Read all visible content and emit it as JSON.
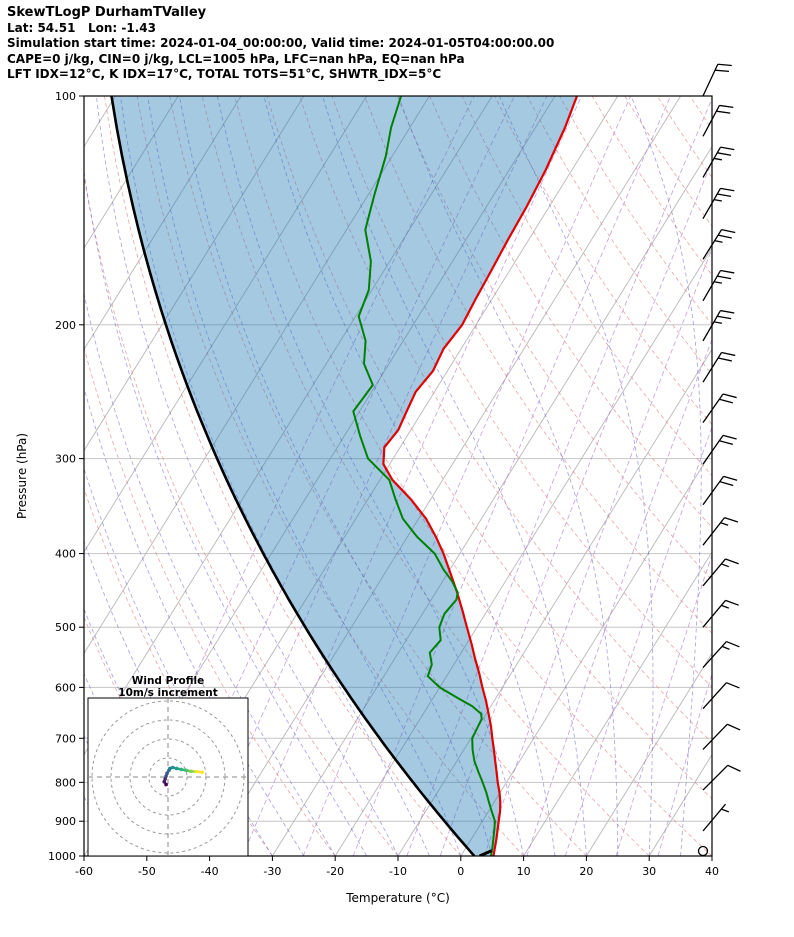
{
  "header": {
    "title": "SkewTLogP DurhamTValley",
    "location": "Lat: 54.51   Lon: -1.43",
    "times": "Simulation start time: 2024-01-04_00:00:00, Valid time: 2024-01-05T04:00:00.00",
    "indices1": "CAPE=0 j/kg, CIN=0 j/kg, LCL=1005 hPa, LFC=nan hPa, EQ=nan hPa",
    "indices2": "LFT IDX=12°C, K IDX=17°C, TOTAL TOTS=51°C, SHWTR_IDX=5°C"
  },
  "chart_data": {
    "type": "line",
    "subtype": "skew-t-log-p",
    "xlabel": "Temperature (°C)",
    "ylabel": "Pressure (hPa)",
    "x_ticks": [
      -60,
      -50,
      -40,
      -30,
      -20,
      -10,
      0,
      10,
      20,
      30,
      40
    ],
    "y_ticks": [
      100,
      200,
      300,
      400,
      500,
      600,
      700,
      800,
      900,
      1000
    ],
    "x_range": [
      -60,
      40
    ],
    "p_range": [
      100,
      1000
    ],
    "skew_c_per_decade": 75,
    "isotherms": {
      "start": -160,
      "end": 40,
      "step": 10
    },
    "dry_adiabats": {
      "start": -40,
      "end": 200,
      "step": 10
    },
    "moist_adiabats": {
      "start": -60,
      "end": 40,
      "step": 5
    },
    "mixing_ratios_g_kg": [
      0.02,
      0.05,
      0.1,
      0.2,
      0.5,
      1,
      2,
      3,
      5,
      8,
      12,
      20,
      30
    ],
    "series": {
      "temperature": {
        "pressure": [
          1000,
          975,
          950,
          925,
          900,
          875,
          850,
          825,
          800,
          775,
          750,
          725,
          700,
          675,
          650,
          625,
          600,
          575,
          550,
          525,
          500,
          475,
          450,
          425,
          400,
          380,
          360,
          340,
          320,
          305,
          290,
          275,
          260,
          245,
          230,
          215,
          200,
          185,
          170,
          155,
          140,
          125,
          110,
          100
        ],
        "temp_c": [
          5.2,
          4.6,
          4.0,
          3.3,
          2.6,
          1.9,
          1.0,
          -0.1,
          -1.4,
          -2.6,
          -3.9,
          -5.2,
          -6.6,
          -8.0,
          -9.6,
          -11.3,
          -13.2,
          -15.1,
          -17.2,
          -19.3,
          -21.6,
          -24.0,
          -26.6,
          -29.5,
          -32.6,
          -35.5,
          -38.8,
          -43.0,
          -48.0,
          -51.0,
          -52.5,
          -52.0,
          -52.5,
          -53.0,
          -52.3,
          -52.8,
          -52.2,
          -52.6,
          -52.9,
          -53.3,
          -53.6,
          -54.2,
          -55.3,
          -56.5
        ]
      },
      "dewpoint": {
        "pressure": [
          1000,
          975,
          950,
          925,
          900,
          875,
          850,
          825,
          800,
          775,
          750,
          725,
          700,
          680,
          660,
          650,
          635,
          620,
          600,
          580,
          560,
          540,
          520,
          500,
          480,
          460,
          450,
          435,
          420,
          400,
          380,
          360,
          340,
          320,
          300,
          280,
          260,
          240,
          225,
          210,
          195,
          180,
          165,
          150,
          135,
          120,
          110,
          100
        ],
        "temp_c": [
          4.8,
          4.2,
          3.5,
          2.8,
          2.0,
          0.6,
          -0.8,
          -2.2,
          -3.8,
          -5.5,
          -7.2,
          -8.6,
          -9.8,
          -10.0,
          -10.2,
          -10.8,
          -13.0,
          -16.0,
          -20.0,
          -23.0,
          -23.5,
          -25.0,
          -24.5,
          -26.0,
          -26.5,
          -26.0,
          -26.5,
          -28.5,
          -31.0,
          -34.0,
          -38.5,
          -42.5,
          -45.5,
          -48.5,
          -54.0,
          -57.5,
          -61.0,
          -60.5,
          -64.0,
          -66.0,
          -69.5,
          -70.5,
          -73.0,
          -77.0,
          -79.0,
          -81.0,
          -83.0,
          -84.5
        ]
      },
      "parcel": {
        "type": "dry-adiabat",
        "theta_k": 275.3
      }
    },
    "surface_marker": {
      "pressure": [
        1000,
        984
      ],
      "temp_c": [
        3.0,
        4.4
      ]
    },
    "wind_barbs": {
      "full_barb_ms": 10,
      "levels": [
        {
          "p": 100,
          "spd": 20,
          "dir": 25
        },
        {
          "p": 113,
          "spd": 20,
          "dir": 28
        },
        {
          "p": 128,
          "spd": 25,
          "dir": 30
        },
        {
          "p": 145,
          "spd": 25,
          "dir": 30
        },
        {
          "p": 164,
          "spd": 25,
          "dir": 32
        },
        {
          "p": 186,
          "spd": 25,
          "dir": 30
        },
        {
          "p": 210,
          "spd": 25,
          "dir": 30
        },
        {
          "p": 238,
          "spd": 20,
          "dir": 32
        },
        {
          "p": 269,
          "spd": 20,
          "dir": 35
        },
        {
          "p": 305,
          "spd": 20,
          "dir": 35
        },
        {
          "p": 345,
          "spd": 20,
          "dir": 36
        },
        {
          "p": 390,
          "spd": 15,
          "dir": 38
        },
        {
          "p": 441,
          "spd": 15,
          "dir": 40
        },
        {
          "p": 500,
          "spd": 15,
          "dir": 40
        },
        {
          "p": 565,
          "spd": 15,
          "dir": 42
        },
        {
          "p": 640,
          "spd": 10,
          "dir": 42
        },
        {
          "p": 724,
          "spd": 10,
          "dir": 44
        },
        {
          "p": 819,
          "spd": 10,
          "dir": 45
        },
        {
          "p": 927,
          "spd": 5,
          "dir": 40
        },
        {
          "p": 985,
          "spd": 0,
          "dir": 0
        }
      ]
    },
    "hodograph": {
      "title": "Wind Profile",
      "subtitle": "10m/s increment",
      "ring_increment_ms": 10,
      "rings_ms": [
        10,
        20,
        30,
        40
      ],
      "u_ms": [
        -1.0,
        -2.0,
        -1.5,
        -1.0,
        -0.5,
        0.5,
        1.0,
        2.5,
        4.5,
        7.0,
        9.5,
        12.0,
        15.0,
        18.0
      ],
      "v_ms": [
        -4.0,
        -2.5,
        -1.0,
        0.5,
        2.0,
        3.5,
        4.5,
        5.0,
        4.5,
        4.0,
        3.5,
        3.0,
        2.8,
        2.5
      ],
      "segment_colors": [
        "#440154",
        "#47126b",
        "#482878",
        "#3e4a89",
        "#375a8c",
        "#2e6d8e",
        "#277f8e",
        "#21918c",
        "#1fa188",
        "#2db27d",
        "#4ac16d",
        "#86d549",
        "#fde725"
      ]
    },
    "colors": {
      "temperature": "#e00000",
      "dewpoint": "#008000",
      "parcel": "#000000",
      "shading": "#1f77b4",
      "shading_opacity": 0.4,
      "isotherm": "#b8b8b8",
      "grid": "#c6c6c6",
      "dry_adiabat": "#e07f7f",
      "moist_adiabat": "#5353cc",
      "mixing_ratio": "#a86bc8",
      "barb": "#000000",
      "inset_ring": "#999999",
      "inset_cross": "#888888",
      "axis": "#000000"
    }
  }
}
